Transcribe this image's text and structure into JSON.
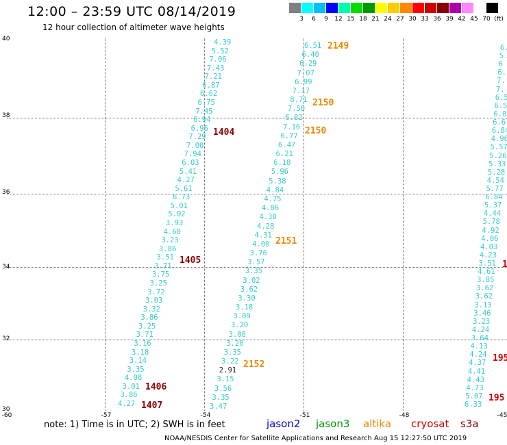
{
  "header": {
    "title": "12:00 – 23:59 UTC 08/14/2019",
    "subtitle": "12 hour collection of altimeter wave heights"
  },
  "legend": {
    "colors": [
      "#808080",
      "#00ffff",
      "#00bfff",
      "#0000ff",
      "#00ffaa",
      "#00dd00",
      "#009900",
      "#ffff00",
      "#ffcc00",
      "#ff8800",
      "#ff0000",
      "#cc0000",
      "#880000",
      "#aa00aa",
      "#ff88ff",
      "#ffffff",
      "#000000"
    ],
    "levels": [
      "3",
      "6",
      "9",
      "12",
      "15",
      "18",
      "21",
      "24",
      "27",
      "30",
      "33",
      "36",
      "39",
      "42",
      "45",
      "70",
      "(ft)"
    ]
  },
  "axes": {
    "lat_labels": [
      "40",
      "38",
      "36",
      "34",
      "32",
      "30"
    ],
    "lon_labels": [
      "-60",
      "-57",
      "-54",
      "-51",
      "-48",
      "-45"
    ]
  },
  "tracks": [
    {
      "id": "left",
      "values": [
        "4.39",
        "5.52",
        "7.06",
        "7.43",
        "7.21",
        "6.87",
        "6.62",
        "6.75",
        "7.45",
        "6.94",
        "6.96",
        "7.29",
        "7.00",
        "7.94",
        "6.03",
        "5.41",
        "4.27",
        "5.61",
        "6.73",
        "5.01",
        "5.02",
        "3.93",
        "4.60",
        "3.23",
        "3.86",
        "3.51",
        "3.71",
        "3.75",
        "3.25",
        "3.72",
        "3.03",
        "3.32",
        "3.86",
        "3.25",
        "3.71",
        "3.16",
        "3.18",
        "3.14",
        "3.35",
        "4.08",
        "3.01",
        "3.86",
        "4.27"
      ],
      "dark": []
    },
    {
      "id": "middle",
      "values": [
        "6.51",
        "6.40",
        "6.29",
        "7.07",
        "6.99",
        "7.17",
        "8.71",
        "7.50",
        "6.82",
        "7.16",
        "6.77",
        "6.47",
        "6.21",
        "6.18",
        "5.96",
        "5.38",
        "4.84",
        "4.75",
        "4.86",
        "4.38",
        "4.28",
        "4.31",
        "4.00",
        "3.76",
        "3.57",
        "3.35",
        "3.02",
        "3.62",
        "3.30",
        "3.18",
        "3.09",
        "3.20",
        "3.08",
        "3.20",
        "3.35",
        "3.22",
        "2.91",
        "3.15",
        "3.56",
        "3.35",
        "3.47"
      ],
      "dark": [
        "2.91"
      ]
    },
    {
      "id": "right",
      "values": [
        "6.",
        "5.",
        "6",
        "6.",
        "7.",
        "7.",
        "6.5",
        "6.5",
        "6.0",
        "6.6",
        "6.84",
        "4.96",
        "5.57",
        "5.26",
        "5.33",
        "5.28",
        "4.54",
        "5.77",
        "6.84",
        "5.37",
        "4.44",
        "5.78",
        "4.92",
        "4.06",
        "4.03",
        "4.23",
        "3.51",
        "4.61",
        "3.85",
        "3.62",
        "3.62",
        "3.13",
        "3.46",
        "3.23",
        "4.24",
        "3.64",
        "4.13",
        "4.24",
        "4.37",
        "4.41",
        "4.43",
        "4.73",
        "5.07",
        "6.33"
      ],
      "dark": []
    }
  ],
  "time_labels": [
    {
      "text": "2149",
      "color": "#ee8800"
    },
    {
      "text": "2150",
      "color": "#ee8800"
    },
    {
      "text": "2150",
      "color": "#ee8800"
    },
    {
      "text": "1404",
      "color": "#8b0000"
    },
    {
      "text": "2151",
      "color": "#ee8800"
    },
    {
      "text": "1405",
      "color": "#8b0000"
    },
    {
      "text": "1",
      "color": "#cc0000"
    },
    {
      "text": "2152",
      "color": "#ee8800"
    },
    {
      "text": "195",
      "color": "#cc0000"
    },
    {
      "text": "1406",
      "color": "#8b0000"
    },
    {
      "text": "1407",
      "color": "#8b0000"
    },
    {
      "text": "195",
      "color": "#cc0000"
    }
  ],
  "footer": {
    "notes": "note:  1) Time is in UTC;  2) SWH is in feet",
    "missions": [
      {
        "name": "jason2",
        "color": "#0000cc"
      },
      {
        "name": "jason3",
        "color": "#009900"
      },
      {
        "name": "altika",
        "color": "#ee8800"
      },
      {
        "name": "cryosat",
        "color": "#cc0000"
      },
      {
        "name": "s3a",
        "color": "#880000"
      }
    ],
    "credit": "NOAA/NESDIS Center for Satellite Applications and Research    Aug 15 12:27:50 UTC 2019"
  }
}
